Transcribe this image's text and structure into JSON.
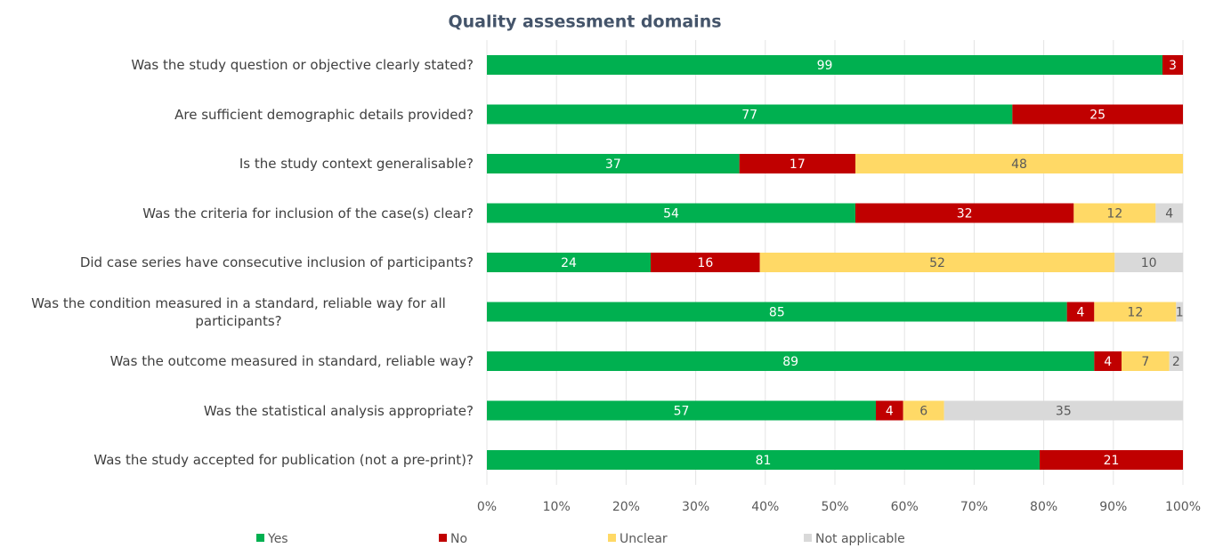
{
  "chart_data": {
    "type": "bar",
    "orientation": "horizontal",
    "stacking": "percent",
    "title": "Quality assessment domains",
    "categories": [
      "Was the study question or objective clearly stated?",
      "Are sufficient demographic details provided?",
      "Is the study context generalisable?",
      "Was the criteria for inclusion of the case(s) clear?",
      "Did case series have consecutive inclusion of participants?",
      "Was the condition measured in a standard, reliable way for all participants?",
      "Was the outcome measured in standard, reliable way?",
      "Was the statistical analysis appropriate?",
      "Was the study accepted for publication (not a pre-print)?"
    ],
    "series": [
      {
        "name": "Yes",
        "color": "#00b050",
        "values": [
          99,
          77,
          37,
          54,
          24,
          85,
          89,
          57,
          81
        ]
      },
      {
        "name": "No",
        "color": "#c00000",
        "values": [
          3,
          25,
          17,
          32,
          16,
          4,
          4,
          4,
          21
        ]
      },
      {
        "name": "Unclear",
        "color": "#ffd966",
        "values": [
          null,
          null,
          48,
          12,
          52,
          12,
          7,
          6,
          null
        ]
      },
      {
        "name": "Not applicable",
        "color": "#d9d9d9",
        "values": [
          null,
          null,
          null,
          4,
          10,
          1,
          2,
          35,
          null
        ]
      }
    ],
    "xlim": [
      0,
      100
    ],
    "xticks": [
      {
        "value": 0,
        "label": "0%"
      },
      {
        "value": 10,
        "label": "10%"
      },
      {
        "value": 20,
        "label": "20%"
      },
      {
        "value": 30,
        "label": "30%"
      },
      {
        "value": 40,
        "label": "40%"
      },
      {
        "value": 50,
        "label": "50%"
      },
      {
        "value": 60,
        "label": "60%"
      },
      {
        "value": 70,
        "label": "70%"
      },
      {
        "value": 80,
        "label": "80%"
      },
      {
        "value": 90,
        "label": "90%"
      },
      {
        "value": 100,
        "label": "100%"
      }
    ],
    "grid": true,
    "legend": "bottom"
  }
}
